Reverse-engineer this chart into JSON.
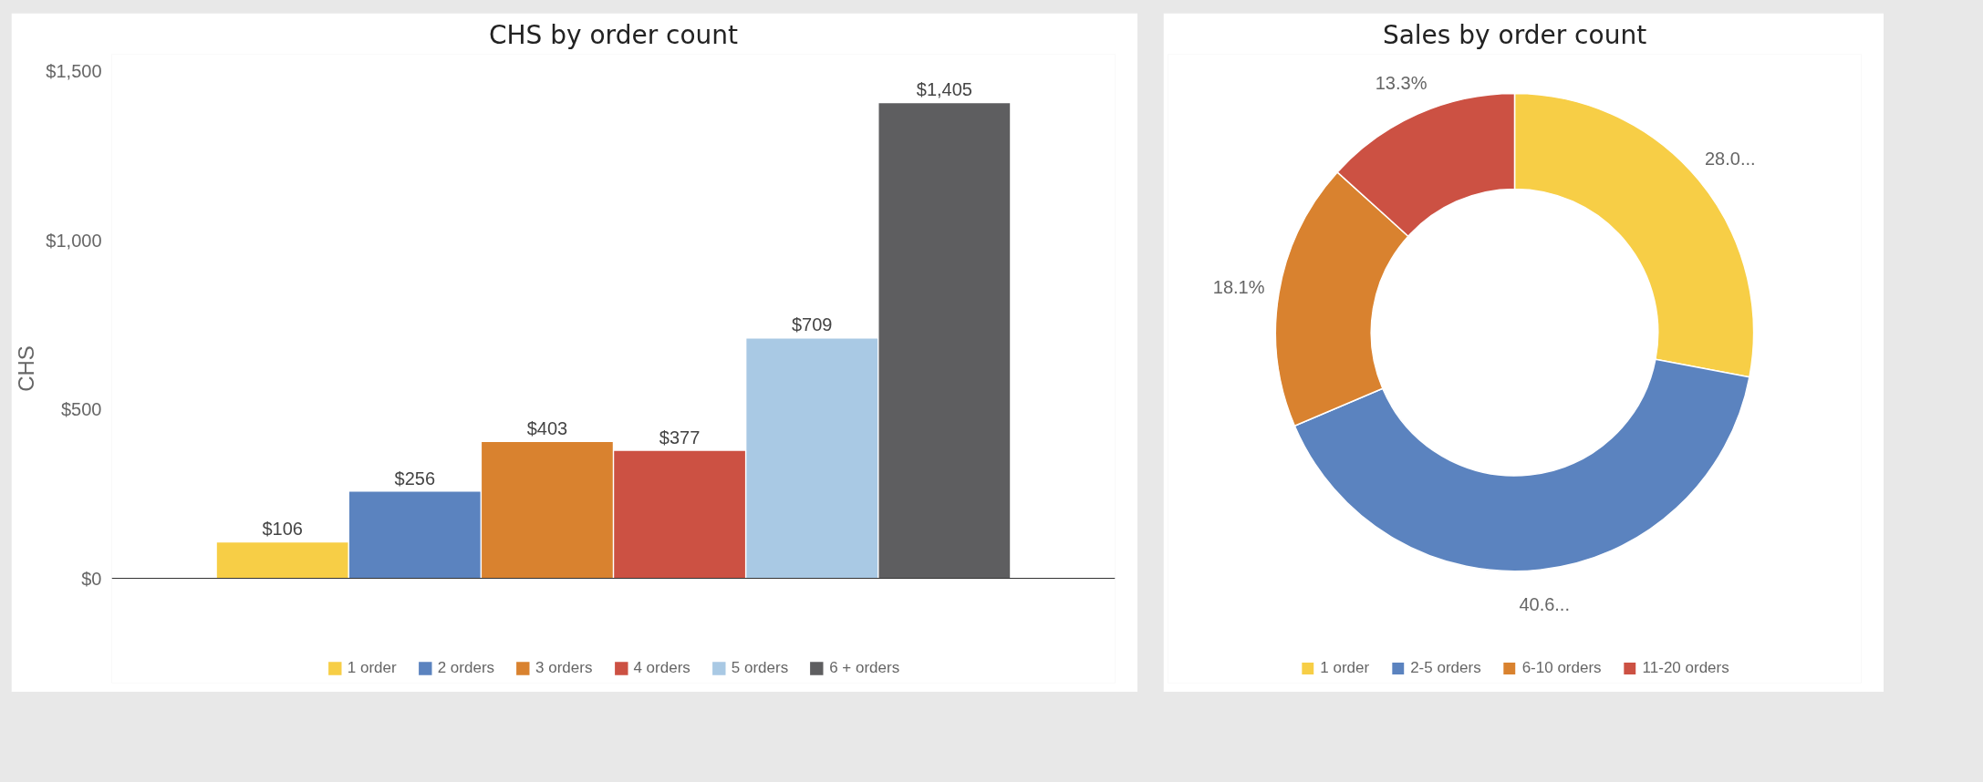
{
  "chart_data": [
    {
      "type": "bar",
      "title": "CHS by order count",
      "ylabel": "CHS",
      "categories": [
        null
      ],
      "series": [
        {
          "name": "1 order",
          "color": "#f7ce46",
          "values": [
            106
          ],
          "value_labels": [
            "$106"
          ]
        },
        {
          "name": "2 orders",
          "color": "#5b83bf",
          "values": [
            256
          ],
          "value_labels": [
            "$256"
          ]
        },
        {
          "name": "3 orders",
          "color": "#d9822f",
          "values": [
            403
          ],
          "value_labels": [
            "$403"
          ]
        },
        {
          "name": "4 orders",
          "color": "#cc5143",
          "values": [
            377
          ],
          "value_labels": [
            "$377"
          ]
        },
        {
          "name": "5 orders",
          "color": "#a9c9e4",
          "values": [
            709
          ],
          "value_labels": [
            "$709"
          ]
        },
        {
          "name": "6 + orders",
          "color": "#5e5e60",
          "values": [
            1405
          ],
          "value_labels": [
            "$1,405"
          ]
        }
      ],
      "ylim": [
        0,
        1550
      ],
      "yticks": [
        {
          "value": 0,
          "label": "$0"
        },
        {
          "value": 500,
          "label": "$500"
        },
        {
          "value": 1000,
          "label": "$1,000"
        },
        {
          "value": 1500,
          "label": "$1,500"
        }
      ],
      "tick_labels": "y",
      "grid": false,
      "legend": "bottom"
    },
    {
      "type": "donut",
      "title": "Sales by order count",
      "categories": [
        "1 order",
        "2-5 orders",
        "6-10 orders",
        "11-20 orders"
      ],
      "values": [
        28.0,
        40.6,
        18.1,
        13.3
      ],
      "colors": [
        "#f7ce46",
        "#5b83bf",
        "#d9822f",
        "#cc5143"
      ],
      "value_labels": [
        "28.0...",
        "40.6...",
        "18.1%",
        "13.3%"
      ],
      "legend": "bottom"
    }
  ]
}
